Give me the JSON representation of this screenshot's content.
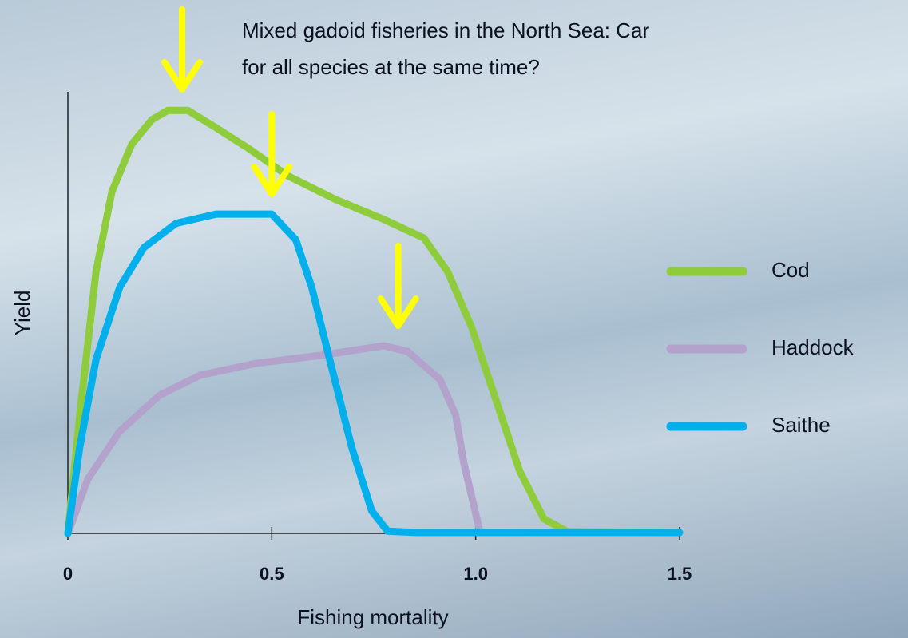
{
  "chart_data": {
    "type": "line",
    "title": "Mixed gadoid fisheries in the North Sea: Car",
    "subtitle": "for all species at the same time?",
    "x_label": "Fishing mortality",
    "y_label": "Yield",
    "xlim": [
      0,
      1.5
    ],
    "xticks": [
      0,
      0.5,
      {
        "value": 1,
        "label": "1.0"
      },
      1.5
    ],
    "ylim": [
      0,
      100
    ],
    "arrow_color": "#ffff00",
    "arrows_x": [
      0.28,
      0.5,
      0.81
    ],
    "series": [
      {
        "name": "Cod",
        "color": "#8fcc3c",
        "x": [
          0,
          0.029,
          0.069,
          0.108,
          0.157,
          0.206,
          0.245,
          0.294,
          0.363,
          0.441,
          0.539,
          0.657,
          0.775,
          0.873,
          0.931,
          0.99,
          1.049,
          1.108,
          1.167,
          1.225,
          1.5
        ],
        "values": [
          0,
          26.8,
          59.3,
          77.4,
          88.2,
          93.7,
          95.8,
          95.8,
          91.9,
          87.3,
          81.0,
          75.6,
          71.1,
          66.9,
          59.3,
          46.7,
          30.4,
          14.1,
          3.3,
          0.4,
          0.2
        ]
      },
      {
        "name": "Haddock",
        "color": "#b3a2cc",
        "x": [
          0,
          0.049,
          0.127,
          0.225,
          0.324,
          0.461,
          0.618,
          0.775,
          0.833,
          0.912,
          0.951,
          0.971,
          1.01
        ],
        "values": [
          0,
          12.3,
          23.1,
          31.3,
          35.8,
          38.5,
          40.3,
          42.5,
          41.2,
          34.9,
          26.8,
          15.9,
          0.5
        ]
      },
      {
        "name": "Saithe",
        "color": "#00b0ec",
        "x": [
          0,
          0.029,
          0.069,
          0.127,
          0.186,
          0.265,
          0.363,
          0.5,
          0.559,
          0.598,
          0.637,
          0.696,
          0.745,
          0.784,
          0.853,
          1.5
        ],
        "values": [
          0,
          19.5,
          39.4,
          55.7,
          64.7,
          70.2,
          72.3,
          72.3,
          66.5,
          55.7,
          41.2,
          19.5,
          5.1,
          0.5,
          0.2,
          0.2
        ]
      }
    ]
  }
}
